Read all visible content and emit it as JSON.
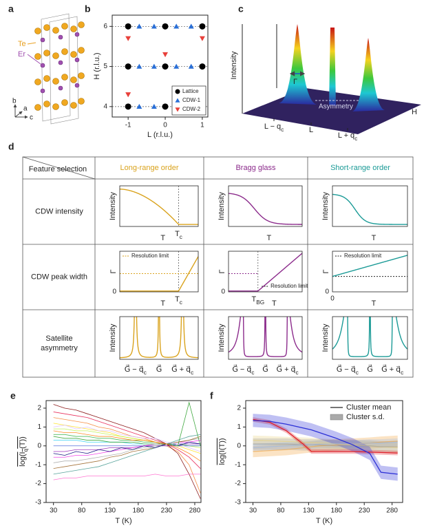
{
  "panel_a": {
    "label": "a",
    "te": "Te",
    "er": "Er",
    "axes": [
      "b",
      "a",
      "c"
    ]
  },
  "panel_c": {
    "label": "c",
    "ylabel": "Intensity",
    "gamma": "Γ",
    "asymmetry": "Asymmetry",
    "axis": "H",
    "ticks": [
      {
        "main": "L − q",
        "sub": "c"
      },
      "L",
      {
        "main": "L + q",
        "sub": "c"
      }
    ]
  },
  "panel_d": {
    "label": "d",
    "header": "Feature selection",
    "columns": [
      "Long-range order",
      "Bragg glass",
      "Short-range order"
    ],
    "colors": [
      "#d9a21b",
      "#8b2a8b",
      "#1a9a96"
    ],
    "rows": [
      [
        "CDW intensity"
      ],
      [
        "CDW peak width"
      ],
      [
        "Satellite",
        "asymmetry"
      ]
    ],
    "cells": [
      [
        {
          "ylabel": "Intensity",
          "xlabel": "T",
          "marker": {
            "main": "T",
            "sub": "c"
          }
        },
        {
          "ylabel": "Intensity",
          "xlabel": "T"
        },
        {
          "ylabel": "Intensity",
          "xlabel": "T"
        }
      ],
      [
        {
          "ylabel": "Γ",
          "y0": "0",
          "xlabel": "T",
          "marker": {
            "main": "T",
            "sub": "c"
          },
          "note": "Resolution limit"
        },
        {
          "ylabel": "Γ",
          "y0": "0",
          "xlabel": "T",
          "marker": {
            "main": "T",
            "sub": "BG"
          },
          "note": "Resolution limit"
        },
        {
          "ylabel": "Γ",
          "y0": "0",
          "x0": "0",
          "xlabel": "T",
          "note": "Resolution limit"
        }
      ],
      [
        {
          "ylabel": "Intensity",
          "ticks": [
            {
              "main": "G⃗ − q⃗",
              "sub": "c"
            },
            "G⃗",
            {
              "main": "G⃗ + q⃗",
              "sub": "c"
            }
          ]
        },
        {
          "ylabel": "Intensity",
          "ticks": [
            {
              "main": "G⃗ − q⃗",
              "sub": "c"
            },
            "G⃗",
            {
              "main": "G⃗ + q⃗",
              "sub": "c"
            }
          ]
        },
        {
          "ylabel": "Intensity",
          "ticks": [
            {
              "main": "G⃗ − q⃗",
              "sub": "c"
            },
            "G⃗",
            {
              "main": "G⃗ + q⃗",
              "sub": "c"
            }
          ]
        }
      ]
    ]
  },
  "chart_data": [
    {
      "type": "scatter",
      "panel": "b",
      "xlabel": "L (r.l.u.)",
      "ylabel": "H (r.l.u.)",
      "xlim": [
        -1.43,
        1.15
      ],
      "ylim": [
        3.74,
        6.28
      ],
      "xticks": [
        -1,
        0,
        1
      ],
      "yticks": [
        4,
        5,
        6
      ],
      "grid": true,
      "legend": "lower right",
      "series": [
        {
          "name": "Lattice",
          "color": "#000000",
          "marker": "circle",
          "x": [
            -1,
            0,
            1,
            -1,
            0,
            1,
            -1,
            0,
            1
          ],
          "values": [
            4,
            4,
            4,
            5,
            5,
            5,
            6,
            6,
            6
          ]
        },
        {
          "name": "CDW-1",
          "color": "#2a6fd6",
          "marker": "triangle-up",
          "x": [
            -0.7,
            -0.3,
            0.3,
            0.7,
            -0.7,
            -0.3,
            0.3,
            0.7,
            -0.7,
            -0.3,
            0.3,
            0.7
          ],
          "values": [
            4,
            4,
            4,
            4,
            5,
            5,
            5,
            5,
            6,
            6,
            6,
            6
          ]
        },
        {
          "name": "CDW-2",
          "color": "#e8403a",
          "marker": "triangle-down",
          "x": [
            -1,
            1,
            0,
            -1
          ],
          "values": [
            5.7,
            5.7,
            5.3,
            4.3
          ]
        }
      ]
    },
    {
      "type": "line",
      "panel": "e",
      "xlabel": "T (K)",
      "ylabel": {
        "main": "log(I",
        "sub": "q",
        "tail": "(T))"
      },
      "x": [
        30,
        50,
        70,
        90,
        110,
        130,
        150,
        170,
        190,
        210,
        230,
        250,
        270,
        290
      ],
      "xlim": [
        17,
        291
      ],
      "ylim": [
        -3,
        2.4
      ],
      "xticks": [
        30,
        80,
        130,
        180,
        230,
        280
      ],
      "yticks": [
        -3,
        -2,
        -1,
        0,
        1,
        2
      ],
      "series": [
        {
          "color": "#e6194b",
          "values": [
            1.8,
            1.7,
            1.6,
            1.5,
            1.3,
            1.1,
            0.9,
            0.7,
            0.5,
            0.3,
            0.1,
            -0.2,
            -0.6,
            -1.2
          ]
        },
        {
          "color": "#f58231",
          "values": [
            1.5,
            1.4,
            1.3,
            1.2,
            1.0,
            0.9,
            0.7,
            0.5,
            0.4,
            0.2,
            0.0,
            -0.3,
            -1.0,
            -2.5
          ]
        },
        {
          "color": "#ffe119",
          "values": [
            1.2,
            1.1,
            1.0,
            0.9,
            0.8,
            0.7,
            0.5,
            0.4,
            0.3,
            0.2,
            0.1,
            0.0,
            -0.2,
            -0.4
          ]
        },
        {
          "color": "#bfef45",
          "values": [
            0.9,
            0.9,
            0.8,
            0.8,
            0.7,
            0.6,
            0.5,
            0.4,
            0.3,
            0.2,
            0.1,
            0.1,
            0.0,
            -0.1
          ]
        },
        {
          "color": "#3cb44b",
          "values": [
            0.6,
            0.6,
            0.5,
            0.5,
            0.4,
            0.4,
            0.3,
            0.3,
            0.2,
            0.2,
            0.1,
            0.1,
            0.0,
            0.0
          ]
        },
        {
          "color": "#42d4f4",
          "values": [
            0.3,
            0.3,
            0.3,
            0.2,
            0.2,
            0.2,
            0.2,
            0.1,
            0.1,
            0.1,
            0.1,
            0.1,
            0.1,
            0.1
          ]
        },
        {
          "color": "#4363d8",
          "values": [
            0.0,
            0.0,
            0.0,
            0.0,
            0.0,
            0.0,
            0.0,
            0.0,
            0.0,
            0.0,
            0.0,
            0.0,
            0.0,
            0.0
          ]
        },
        {
          "color": "#911eb4",
          "values": [
            -0.3,
            -0.3,
            -0.2,
            -0.2,
            -0.2,
            -0.1,
            -0.1,
            -0.1,
            0.0,
            0.0,
            0.0,
            0.1,
            0.1,
            0.1
          ]
        },
        {
          "color": "#f032e6",
          "values": [
            -0.6,
            -0.6,
            -0.5,
            -0.5,
            -0.4,
            -0.3,
            -0.2,
            -0.1,
            0.0,
            0.1,
            0.1,
            0.2,
            0.2,
            0.3
          ]
        },
        {
          "color": "#a9a9a9",
          "values": [
            -0.9,
            -0.8,
            -0.8,
            -0.7,
            -0.6,
            -0.5,
            -0.4,
            -0.2,
            -0.1,
            0.0,
            0.1,
            0.2,
            0.3,
            0.4
          ]
        },
        {
          "color": "#9a6324",
          "values": [
            -1.2,
            -1.1,
            -1.0,
            -0.9,
            -0.8,
            -0.6,
            -0.5,
            -0.3,
            -0.2,
            -0.1,
            0.1,
            0.2,
            0.3,
            0.5
          ]
        },
        {
          "color": "#469990",
          "values": [
            -1.5,
            -1.4,
            -1.3,
            -1.2,
            -1.1,
            -0.9,
            -0.7,
            -0.5,
            -0.3,
            -0.1,
            0.1,
            0.3,
            0.5,
            0.6
          ]
        },
        {
          "color": "#800000",
          "values": [
            2.2,
            2.0,
            1.9,
            1.7,
            1.5,
            1.3,
            1.1,
            0.9,
            0.7,
            0.4,
            0.1,
            -0.4,
            -1.5,
            -2.8
          ]
        },
        {
          "color": "#dcbeff",
          "values": [
            1.0,
            1.1,
            0.9,
            1.0,
            0.8,
            0.8,
            0.6,
            0.5,
            0.4,
            0.4,
            0.2,
            0.1,
            -0.1,
            -0.3
          ]
        },
        {
          "color": "#000075",
          "values": [
            -0.4,
            -0.5,
            -0.3,
            -0.4,
            -0.2,
            -0.3,
            -0.1,
            -0.2,
            0.0,
            -0.1,
            0.1,
            0.0,
            0.2,
            0.1
          ]
        },
        {
          "color": "#ff66cc",
          "values": [
            -1.8,
            -1.7,
            -1.7,
            -1.6,
            -1.6,
            -1.6,
            -1.6,
            -1.6,
            -1.6,
            -1.5,
            -1.6,
            -1.6,
            -1.5,
            -1.5
          ]
        },
        {
          "color": "#2ca02c",
          "values": [
            0.5,
            0.4,
            0.4,
            0.3,
            0.3,
            0.2,
            0.2,
            0.2,
            0.1,
            0.1,
            0.1,
            0.0,
            2.3,
            0.0
          ]
        },
        {
          "color": "#ff7f0e",
          "values": [
            0.8,
            0.7,
            0.7,
            0.6,
            0.5,
            0.5,
            0.4,
            0.3,
            0.3,
            0.2,
            0.1,
            -0.1,
            -0.4,
            -0.8
          ]
        }
      ]
    },
    {
      "type": "line",
      "panel": "f",
      "xlabel": "T (K)",
      "ylabel": "log(I(T))",
      "legend_labels": [
        "Cluster mean",
        "Cluster s.d."
      ],
      "legend": "upper right",
      "x": [
        30,
        60,
        90,
        120,
        135,
        150,
        180,
        210,
        240,
        260,
        290
      ],
      "xlim": [
        17,
        299
      ],
      "ylim": [
        -3,
        2.4
      ],
      "xticks": [
        30,
        80,
        130,
        180,
        230,
        280
      ],
      "yticks": [
        -3,
        -2,
        -1,
        0,
        1,
        2
      ],
      "series": [
        {
          "color": "#f2a33a",
          "values": [
            -0.3,
            -0.25,
            -0.2,
            -0.1,
            -0.05,
            0.0,
            0.05,
            0.1,
            0.15,
            0.2,
            0.25
          ],
          "sd": [
            0.3,
            0.3,
            0.3,
            0.3,
            0.3,
            0.3,
            0.3,
            0.3,
            0.3,
            0.3,
            0.3
          ]
        },
        {
          "color": "#e8d27a",
          "values": [
            0.3,
            0.27,
            0.23,
            0.2,
            0.18,
            0.15,
            0.1,
            0.05,
            0.0,
            -0.05,
            -0.1
          ],
          "sd": [
            0.25,
            0.25,
            0.25,
            0.25,
            0.25,
            0.25,
            0.25,
            0.25,
            0.25,
            0.25,
            0.25
          ]
        },
        {
          "color": "#9a9a9a",
          "values": [
            0.1,
            0.1,
            0.1,
            0.05,
            0.05,
            0.05,
            0.0,
            0.0,
            0.0,
            -0.05,
            -0.05
          ],
          "sd": [
            0.3,
            0.3,
            0.3,
            0.3,
            0.3,
            0.3,
            0.3,
            0.3,
            0.3,
            0.3,
            0.3
          ]
        },
        {
          "color": "#9bb8e0",
          "values": [
            -0.1,
            -0.05,
            0.0,
            0.05,
            0.05,
            0.1,
            0.1,
            0.1,
            0.15,
            0.15,
            0.2
          ],
          "sd": [
            0.2,
            0.2,
            0.2,
            0.2,
            0.2,
            0.2,
            0.2,
            0.2,
            0.2,
            0.2,
            0.2
          ]
        },
        {
          "color": "#e0222a",
          "values": [
            1.4,
            1.25,
            0.8,
            0.1,
            -0.3,
            -0.3,
            -0.3,
            -0.3,
            -0.33,
            -0.35,
            -0.38
          ],
          "sd": [
            0.12,
            0.12,
            0.12,
            0.12,
            0.12,
            0.12,
            0.12,
            0.12,
            0.12,
            0.12,
            0.12
          ]
        },
        {
          "color": "#2b2fd6",
          "values": [
            1.35,
            1.3,
            1.15,
            0.95,
            0.85,
            0.7,
            0.4,
            0.05,
            -0.4,
            -1.4,
            -1.5
          ],
          "sd": [
            0.35,
            0.35,
            0.35,
            0.35,
            0.35,
            0.35,
            0.35,
            0.35,
            0.35,
            0.35,
            0.35
          ]
        }
      ]
    }
  ]
}
